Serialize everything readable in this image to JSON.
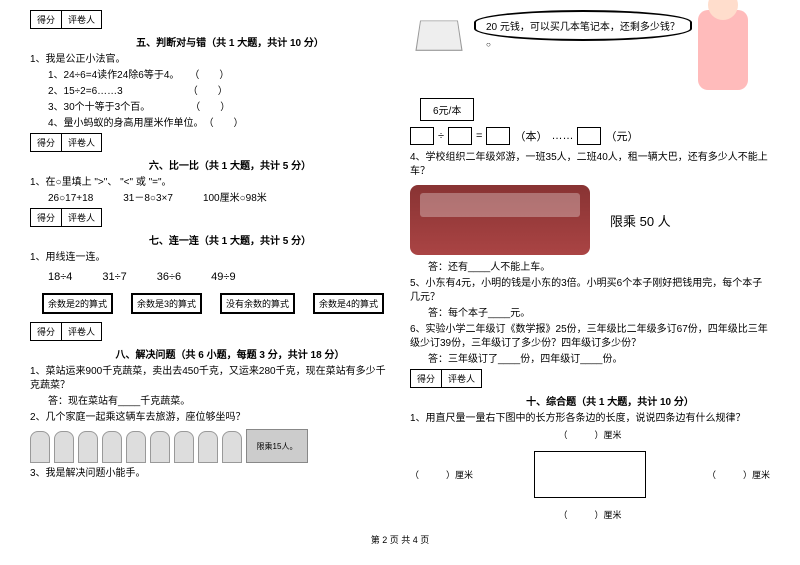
{
  "scorebox": {
    "c1": "得分",
    "c2": "评卷人"
  },
  "s5": {
    "title": "五、判断对与错（共 1 大题，共计 10 分）",
    "intro": "1、我是公正小法官。",
    "i1": "1、24÷6=4读作24除6等于4。",
    "i2": "2、15÷2=6……3",
    "i3": "3、30个十等于3个百。",
    "i4": "4、量小蚂蚁的身高用厘米作单位。",
    "p": "（　　）"
  },
  "s6": {
    "title": "六、比一比（共 1 大题，共计 5 分）",
    "intro": "1、在○里填上 \">\"、 \"<\" 或 \"=\"。",
    "a": "26○17+18",
    "b": "31－8○3×7",
    "c": "100厘米○98米"
  },
  "s7": {
    "title": "七、连一连（共 1 大题，共计 5 分）",
    "intro": "1、用线连一连。",
    "v1": "18÷4",
    "v2": "31÷7",
    "v3": "36÷6",
    "v4": "49÷9",
    "b1": "余数是2的算式",
    "b2": "余数是3的算式",
    "b3": "没有余数的算式",
    "b4": "余数是4的算式"
  },
  "s8": {
    "title": "八、解决问题（共 6 小题，每题 3 分，共计 18 分）",
    "q1": "1、菜站运来900千克蔬菜，卖出去450千克，又运来280千克，现在菜站有多少千克蔬菜？",
    "a1": "答：现在菜站有____千克蔬菜。",
    "q2": "2、几个家庭一起乘这辆车去旅游，座位够坐吗？",
    "bus": "限乘15人。",
    "q3": "3、我是解决问题小能手。"
  },
  "right": {
    "bubble": "20 元钱，可以买几本笔记本，还剩多少钱？",
    "price": "6元/本",
    "eq": {
      "d": "÷",
      "e": "=",
      "u1": "（本）",
      "dots": "……",
      "u2": "（元）"
    },
    "q4": "4、学校组织二年级郊游，一班35人，二班40人，租一辆大巴，还有多少人不能上车？",
    "seat": "限乘 50 人",
    "a4": "答：还有____人不能上车。",
    "q5": "5、小东有4元，小明的钱是小东的3倍。小明买6个本子刚好把钱用完，每个本子几元？",
    "a5": "答：每个本子____元。",
    "q6": "6、实验小学二年级订《数学报》25份，三年级比二年级多订67份，四年级比三年级少订39份，三年级订了多少份？四年级订多少份？",
    "a6": "答：三年级订了____份，四年级订____份。"
  },
  "s10": {
    "title": "十、综合题（共 1 大题，共计 10 分）",
    "q1": "1、用直尺量一量右下图中的长方形各条边的长度，说说四条边有什么规律？",
    "lb": "（　　　）厘米"
  },
  "footer": "第 2 页 共 4 页"
}
